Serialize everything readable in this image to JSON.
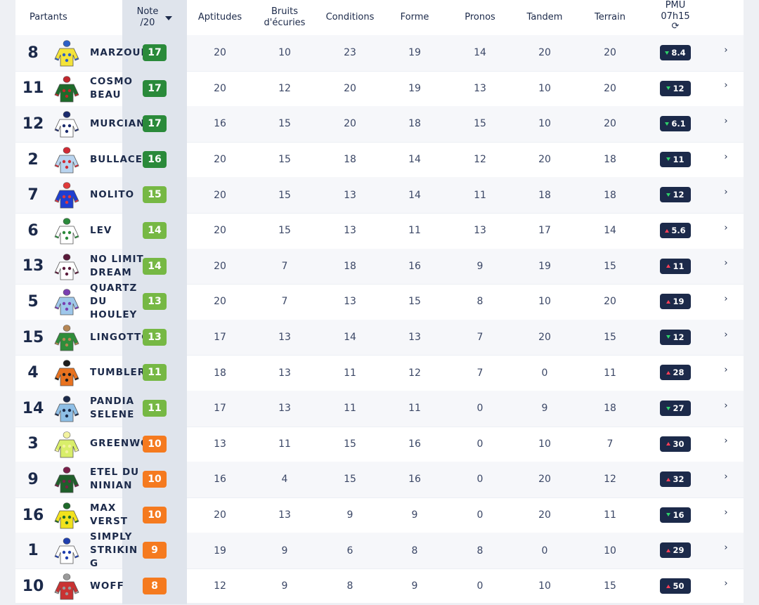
{
  "header": {
    "partants": "Partants",
    "note_l1": "Note",
    "note_l2": "/20",
    "aptitudes": "Aptitudes",
    "bruits_l1": "Bruits",
    "bruits_l2": "d'écuries",
    "conditions": "Conditions",
    "forme": "Forme",
    "pronos": "Pronos",
    "tandem": "Tandem",
    "terrain": "Terrain",
    "pmu_l1": "PMU",
    "pmu_l2": "07h15",
    "refresh_icon": "refresh-icon"
  },
  "colors": {
    "note_dark_green": "#2a8a3a",
    "note_light_green": "#76b844",
    "note_orange": "#f57a1f",
    "pmu_bg": "#1c2a4a",
    "trend_down": "#2fd36b",
    "trend_up": "#ff3f57"
  },
  "rows": [
    {
      "num": "8",
      "name": "MARZOUK",
      "note": "17",
      "note_color": "#2a8a3a",
      "aptitudes": "20",
      "bruits": "10",
      "conditions": "23",
      "forme": "19",
      "pronos": "14",
      "tandem": "20",
      "terrain": "20",
      "pmu": "8.4",
      "trend": "down",
      "silk": [
        "#f4e33a",
        "#2c5fc7"
      ]
    },
    {
      "num": "11",
      "name": "COSMO BEAU",
      "note": "17",
      "note_color": "#2a8a3a",
      "aptitudes": "20",
      "bruits": "12",
      "conditions": "20",
      "forme": "19",
      "pronos": "13",
      "tandem": "10",
      "terrain": "20",
      "pmu": "12",
      "trend": "down",
      "silk": [
        "#1e6b2a",
        "#c0272d"
      ]
    },
    {
      "num": "12",
      "name": "MURCIANO",
      "note": "17",
      "note_color": "#2a8a3a",
      "aptitudes": "16",
      "bruits": "15",
      "conditions": "20",
      "forme": "18",
      "pronos": "15",
      "tandem": "10",
      "terrain": "20",
      "pmu": "6.1",
      "trend": "down",
      "silk": [
        "#ffffff",
        "#1a2a6c"
      ]
    },
    {
      "num": "2",
      "name": "BULLACE",
      "note": "16",
      "note_color": "#2a8a3a",
      "aptitudes": "20",
      "bruits": "15",
      "conditions": "18",
      "forme": "14",
      "pronos": "12",
      "tandem": "20",
      "terrain": "18",
      "pmu": "11",
      "trend": "down",
      "silk": [
        "#b9d4ef",
        "#d02b35"
      ]
    },
    {
      "num": "7",
      "name": "NOLITO",
      "note": "15",
      "note_color": "#76b844",
      "aptitudes": "20",
      "bruits": "15",
      "conditions": "13",
      "forme": "14",
      "pronos": "11",
      "tandem": "18",
      "terrain": "18",
      "pmu": "12",
      "trend": "down",
      "silk": [
        "#1f3fd1",
        "#e03a3a"
      ]
    },
    {
      "num": "6",
      "name": "LEV",
      "note": "14",
      "note_color": "#76b844",
      "aptitudes": "20",
      "bruits": "15",
      "conditions": "13",
      "forme": "11",
      "pronos": "13",
      "tandem": "17",
      "terrain": "14",
      "pmu": "5.6",
      "trend": "up",
      "silk": [
        "#ffffff",
        "#2b8a3b"
      ]
    },
    {
      "num": "13",
      "name": "NO LIMIT DREAM",
      "note": "14",
      "note_color": "#76b844",
      "aptitudes": "20",
      "bruits": "7",
      "conditions": "18",
      "forme": "16",
      "pronos": "9",
      "tandem": "19",
      "terrain": "15",
      "pmu": "11",
      "trend": "up",
      "silk": [
        "#ffffff",
        "#5a1a3a"
      ]
    },
    {
      "num": "5",
      "name": "QUARTZ DU HOULEY",
      "note": "13",
      "note_color": "#76b844",
      "aptitudes": "20",
      "bruits": "7",
      "conditions": "13",
      "forme": "15",
      "pronos": "8",
      "tandem": "10",
      "terrain": "20",
      "pmu": "19",
      "trend": "up",
      "silk": [
        "#9ec7ea",
        "#7a3fb0"
      ]
    },
    {
      "num": "15",
      "name": "LINGOTTO",
      "note": "13",
      "note_color": "#76b844",
      "aptitudes": "17",
      "bruits": "13",
      "conditions": "14",
      "forme": "13",
      "pronos": "7",
      "tandem": "20",
      "terrain": "15",
      "pmu": "12",
      "trend": "down",
      "silk": [
        "#2f8d3a",
        "#b58655"
      ]
    },
    {
      "num": "4",
      "name": "TUMBLER",
      "note": "11",
      "note_color": "#76b844",
      "aptitudes": "18",
      "bruits": "13",
      "conditions": "11",
      "forme": "12",
      "pronos": "7",
      "tandem": "0",
      "terrain": "11",
      "pmu": "28",
      "trend": "up",
      "silk": [
        "#e8721f",
        "#1c1c1c"
      ]
    },
    {
      "num": "14",
      "name": "PANDIA SELENE",
      "note": "11",
      "note_color": "#76b844",
      "aptitudes": "17",
      "bruits": "13",
      "conditions": "11",
      "forme": "11",
      "pronos": "0",
      "tandem": "9",
      "terrain": "18",
      "pmu": "27",
      "trend": "down",
      "silk": [
        "#8fbfe6",
        "#1c2a4a"
      ]
    },
    {
      "num": "3",
      "name": "GREENWOOD",
      "note": "10",
      "note_color": "#f57a1f",
      "aptitudes": "13",
      "bruits": "11",
      "conditions": "15",
      "forme": "16",
      "pronos": "0",
      "tandem": "10",
      "terrain": "7",
      "pmu": "30",
      "trend": "up",
      "silk": [
        "#d9ee6a",
        "#f3f3a0"
      ]
    },
    {
      "num": "9",
      "name": "ETEL DU NINIAN",
      "note": "10",
      "note_color": "#f57a1f",
      "aptitudes": "16",
      "bruits": "4",
      "conditions": "15",
      "forme": "16",
      "pronos": "0",
      "tandem": "20",
      "terrain": "12",
      "pmu": "32",
      "trend": "up",
      "silk": [
        "#1f5f2a",
        "#7a1f4a"
      ]
    },
    {
      "num": "16",
      "name": "MAX VERST",
      "note": "10",
      "note_color": "#f57a1f",
      "aptitudes": "20",
      "bruits": "13",
      "conditions": "9",
      "forme": "9",
      "pronos": "0",
      "tandem": "20",
      "terrain": "11",
      "pmu": "16",
      "trend": "down",
      "silk": [
        "#f2e21d",
        "#1f6a2a"
      ]
    },
    {
      "num": "1",
      "name": "SIMPLY STRIKING",
      "note": "9",
      "note_color": "#f57a1f",
      "aptitudes": "19",
      "bruits": "9",
      "conditions": "6",
      "forme": "8",
      "pronos": "8",
      "tandem": "0",
      "terrain": "10",
      "pmu": "29",
      "trend": "up",
      "silk": [
        "#ffffff",
        "#1f3fae"
      ]
    },
    {
      "num": "10",
      "name": "WOFF",
      "note": "8",
      "note_color": "#f57a1f",
      "aptitudes": "12",
      "bruits": "9",
      "conditions": "8",
      "forme": "9",
      "pronos": "0",
      "tandem": "10",
      "terrain": "15",
      "pmu": "50",
      "trend": "up",
      "silk": [
        "#c93232",
        "#9a9a9a"
      ]
    }
  ]
}
